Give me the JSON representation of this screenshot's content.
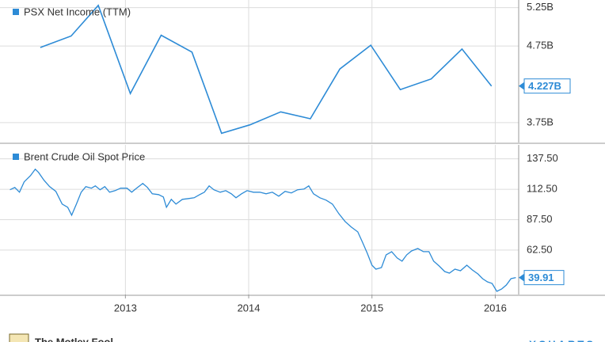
{
  "chart_data": [
    {
      "type": "line",
      "series": [
        {
          "name": "PSX Net Income (TTM)",
          "color": "#2d8bd6",
          "x": [
            2012.31,
            2012.56,
            2012.78,
            2013.04,
            2013.29,
            2013.54,
            2013.78,
            2014.01,
            2014.26,
            2014.5,
            2014.74,
            2014.99,
            2015.23,
            2015.48,
            2015.73,
            2015.97
          ],
          "values": [
            4.73,
            4.88,
            5.28,
            4.13,
            4.89,
            4.67,
            3.61,
            3.72,
            3.89,
            3.8,
            4.45,
            4.76,
            4.18,
            4.32,
            4.71,
            4.227
          ],
          "value_labels": [
            null,
            null,
            null,
            null,
            null,
            null,
            null,
            null,
            null,
            null,
            null,
            null,
            null,
            null,
            null,
            "4.227B"
          ]
        }
      ],
      "xlim": [
        2012.06,
        2016.19
      ],
      "xticks": [
        2013,
        2014,
        2015,
        2016
      ],
      "ylim": [
        3.49,
        5.35
      ],
      "yticks": [
        {
          "value": 3.75,
          "label": "3.75B"
        },
        {
          "value": 4.75,
          "label": "4.75B"
        },
        {
          "value": 5.25,
          "label": "5.25B"
        }
      ],
      "grid": true
    },
    {
      "type": "line",
      "series": [
        {
          "name": "Brent Crude Oil Spot Price",
          "color": "#2d8bd6",
          "x": [
            2012.064,
            2012.103,
            2012.141,
            2012.179,
            2012.231,
            2012.269,
            2012.295,
            2012.34,
            2012.385,
            2012.436,
            2012.487,
            2012.532,
            2012.564,
            2012.603,
            2012.641,
            2012.679,
            2012.724,
            2012.756,
            2012.795,
            2012.833,
            2012.872,
            2012.917,
            2012.962,
            2013.013,
            2013.051,
            2013.09,
            2013.141,
            2013.179,
            2013.218,
            2013.269,
            2013.308,
            2013.333,
            2013.372,
            2013.41,
            2013.462,
            2013.513,
            2013.558,
            2013.603,
            2013.641,
            2013.679,
            2013.718,
            2013.769,
            2013.814,
            2013.859,
            2013.897,
            2013.942,
            2013.987,
            2014.038,
            2014.09,
            2014.141,
            2014.192,
            2014.244,
            2014.295,
            2014.346,
            2014.397,
            2014.449,
            2014.487,
            2014.526,
            2014.577,
            2014.628,
            2014.679,
            2014.731,
            2014.782,
            2014.833,
            2014.885,
            2014.923,
            2014.962,
            2015.0,
            2015.032,
            2015.077,
            2015.115,
            2015.16,
            2015.205,
            2015.244,
            2015.282,
            2015.321,
            2015.372,
            2015.417,
            2015.462,
            2015.5,
            2015.545,
            2015.59,
            2015.628,
            2015.673,
            2015.718,
            2015.769,
            2015.814,
            2015.859,
            2015.897,
            2015.936,
            2015.974,
            2016.013,
            2016.051,
            2016.09,
            2016.128,
            2016.167
          ],
          "values": [
            112.1,
            114.0,
            110.1,
            118.6,
            123.8,
            129.0,
            126.4,
            119.9,
            114.7,
            110.8,
            100.3,
            97.7,
            91.2,
            100.3,
            110.1,
            114.7,
            113.4,
            115.3,
            112.1,
            114.7,
            110.1,
            111.4,
            113.4,
            113.4,
            110.1,
            113.4,
            117.3,
            114.0,
            108.8,
            108.1,
            106.2,
            97.7,
            104.2,
            100.3,
            104.2,
            104.9,
            105.5,
            108.1,
            110.1,
            115.3,
            112.1,
            110.1,
            111.4,
            108.8,
            105.5,
            108.8,
            111.4,
            110.1,
            110.1,
            108.8,
            110.1,
            106.8,
            110.8,
            109.5,
            112.1,
            112.7,
            115.3,
            108.8,
            105.5,
            103.6,
            100.3,
            92.5,
            86.0,
            81.4,
            77.5,
            69.0,
            59.9,
            50.1,
            46.8,
            48.1,
            58.6,
            61.2,
            56.0,
            53.4,
            58.6,
            61.8,
            63.8,
            61.2,
            61.2,
            53.4,
            49.4,
            44.9,
            43.6,
            46.8,
            45.5,
            50.1,
            46.2,
            42.9,
            39.0,
            36.4,
            35.1,
            28.6,
            30.5,
            33.8,
            39.0,
            39.91
          ]
        }
      ],
      "xlim": [
        2012.06,
        2016.19
      ],
      "xticks": [
        2013,
        2014,
        2015,
        2016
      ],
      "ylim": [
        26,
        149
      ],
      "yticks": [
        {
          "value": 62.5,
          "label": "62.50"
        },
        {
          "value": 87.5,
          "label": "87.50"
        },
        {
          "value": 112.5,
          "label": "112.50"
        },
        {
          "value": 137.5,
          "label": "137.50"
        }
      ],
      "grid": true
    }
  ],
  "footer": {
    "left": "The Motley Fool",
    "right": "YCHARTS"
  }
}
